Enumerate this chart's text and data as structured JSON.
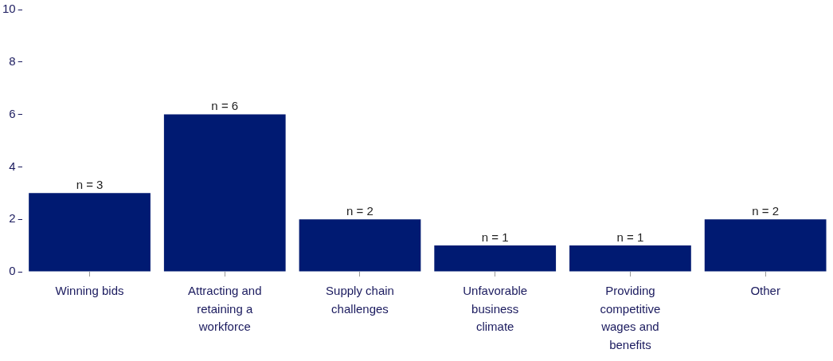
{
  "chart_data": {
    "type": "bar",
    "categories": [
      "Winning bids",
      "Attracting and retaining a workforce",
      "Supply chain challenges",
      "Unfavorable business climate",
      "Providing competitive wages and benefits",
      "Other"
    ],
    "values": [
      3,
      6,
      2,
      1,
      1,
      2
    ],
    "color": "#001a72",
    "value_labels": [
      "n = 3",
      "n = 6",
      "n = 2",
      "n = 1",
      "n = 1",
      "n = 2"
    ],
    "ylim": [
      0,
      10
    ],
    "yticks": [
      0,
      2,
      4,
      6,
      8,
      10
    ],
    "grid": false,
    "legend": false
  }
}
